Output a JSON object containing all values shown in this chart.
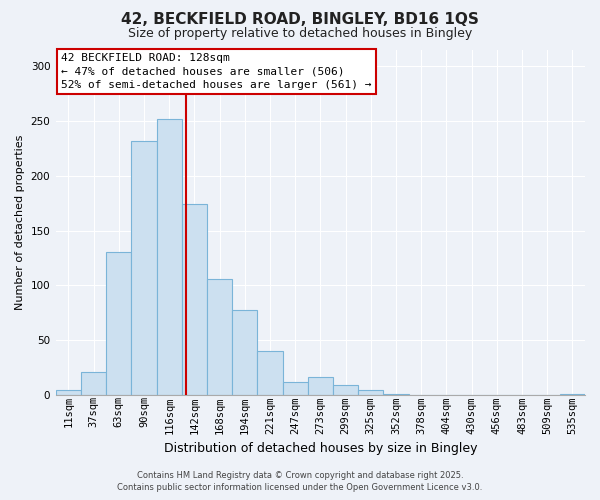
{
  "title": "42, BECKFIELD ROAD, BINGLEY, BD16 1QS",
  "subtitle": "Size of property relative to detached houses in Bingley",
  "xlabel": "Distribution of detached houses by size in Bingley",
  "ylabel": "Number of detached properties",
  "bar_color": "#cce0f0",
  "bar_edge_color": "#7ab4d8",
  "bar_categories": [
    "11sqm",
    "37sqm",
    "63sqm",
    "90sqm",
    "116sqm",
    "142sqm",
    "168sqm",
    "194sqm",
    "221sqm",
    "247sqm",
    "273sqm",
    "299sqm",
    "325sqm",
    "352sqm",
    "378sqm",
    "404sqm",
    "430sqm",
    "456sqm",
    "483sqm",
    "509sqm",
    "535sqm"
  ],
  "bar_values": [
    4,
    21,
    130,
    232,
    252,
    174,
    106,
    77,
    40,
    12,
    16,
    9,
    4,
    1,
    0,
    0,
    0,
    0,
    0,
    0,
    1
  ],
  "vline_x_index": 4.65,
  "vline_color": "#cc0000",
  "annotation_text": "42 BECKFIELD ROAD: 128sqm\n← 47% of detached houses are smaller (506)\n52% of semi-detached houses are larger (561) →",
  "annotation_box_facecolor": "#ffffff",
  "annotation_box_edgecolor": "#cc0000",
  "ylim": [
    0,
    315
  ],
  "yticks": [
    0,
    50,
    100,
    150,
    200,
    250,
    300
  ],
  "footer_line1": "Contains HM Land Registry data © Crown copyright and database right 2025.",
  "footer_line2": "Contains public sector information licensed under the Open Government Licence v3.0.",
  "background_color": "#eef2f8",
  "grid_color": "#ffffff",
  "title_fontsize": 11,
  "subtitle_fontsize": 9,
  "ylabel_fontsize": 8,
  "xlabel_fontsize": 9,
  "tick_fontsize": 7.5,
  "annotation_fontsize": 8
}
